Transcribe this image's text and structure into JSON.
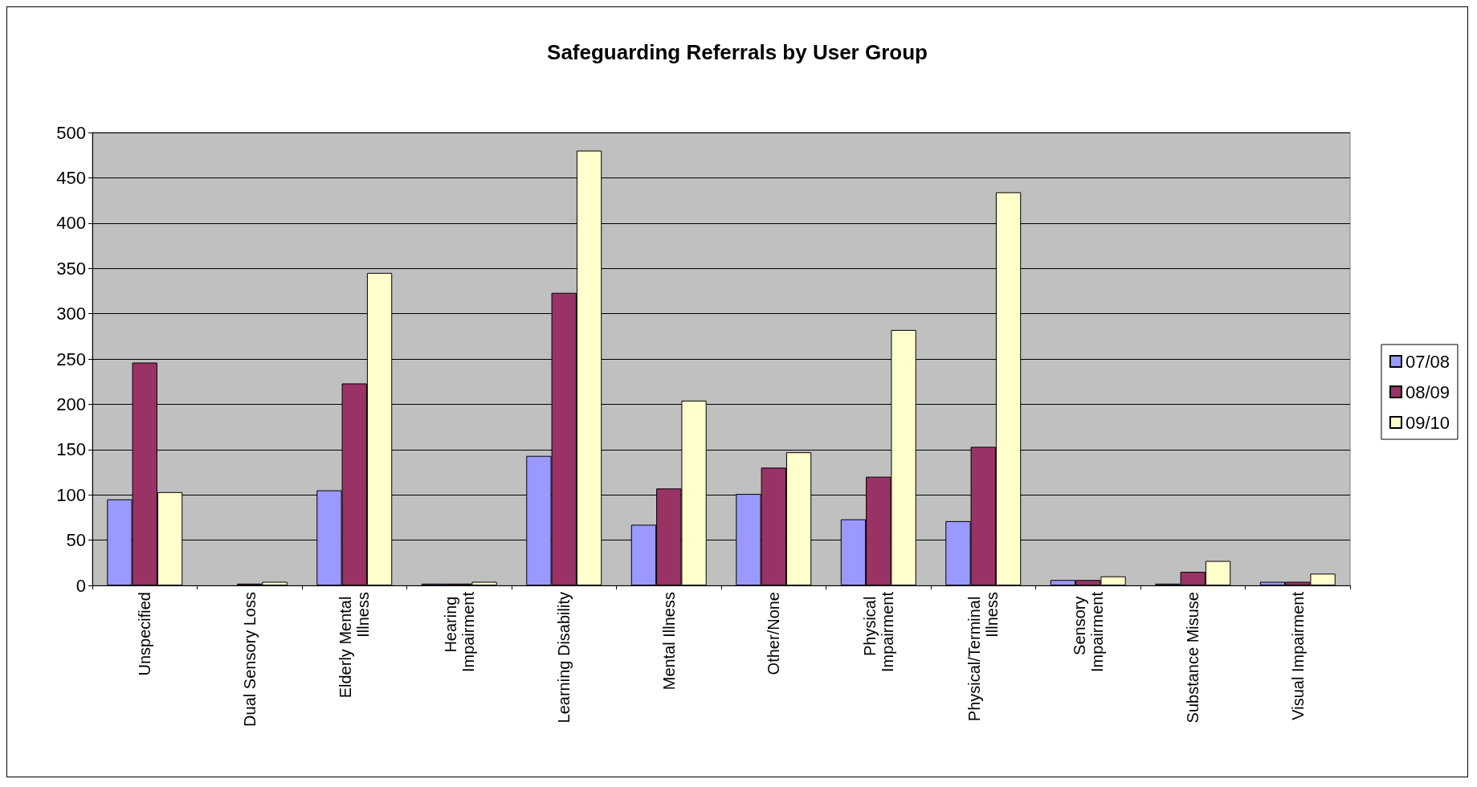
{
  "chart_data": {
    "type": "bar",
    "title": "Safeguarding Referrals by User Group",
    "categories": [
      "Unspecified",
      "Dual Sensory Loss",
      "Elderly Mental Illness",
      "Hearing Impairment",
      "Learning Disability",
      "Mental Illness",
      "Other/None",
      "Physical Impairment",
      "Physical/Terminal Illness",
      "Sensory Impairment",
      "Substance Misuse",
      "Visual Impairment"
    ],
    "series": [
      {
        "name": "07/08",
        "color": "#9999ff",
        "values": [
          95,
          0,
          105,
          2,
          143,
          67,
          101,
          73,
          71,
          6,
          2,
          4
        ]
      },
      {
        "name": "08/09",
        "color": "#993366",
        "values": [
          246,
          2,
          223,
          2,
          323,
          107,
          130,
          120,
          153,
          6,
          15,
          4
        ]
      },
      {
        "name": "09/10",
        "color": "#ffffcc",
        "values": [
          103,
          4,
          345,
          4,
          480,
          204,
          147,
          282,
          434,
          10,
          27,
          13
        ]
      }
    ],
    "ylim": [
      0,
      500
    ],
    "yticks": [
      0,
      50,
      100,
      150,
      200,
      250,
      300,
      350,
      400,
      450,
      500
    ],
    "grid": "y",
    "legend": "right"
  }
}
